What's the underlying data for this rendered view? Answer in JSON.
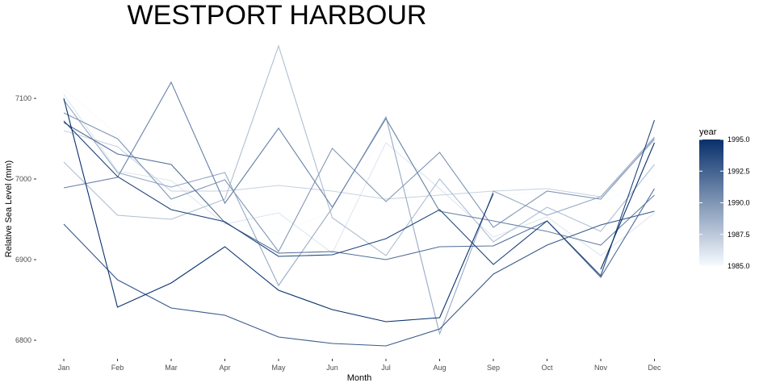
{
  "chart_data": {
    "type": "line",
    "title": "WESTPORT HARBOUR",
    "xlabel": "Month",
    "ylabel": "Relative Sea Level (mm)",
    "categories": [
      "Jan",
      "Feb",
      "Mar",
      "Apr",
      "May",
      "Jun",
      "Jul",
      "Aug",
      "Sep",
      "Oct",
      "Nov",
      "Dec"
    ],
    "ylim": [
      6770,
      7185
    ],
    "yticks": [
      6800,
      6900,
      7000,
      7100
    ],
    "grid": false,
    "legend": {
      "title": "year",
      "position": "right",
      "range": [
        1985,
        1995
      ],
      "ticks": [
        "1985.0",
        "1987.5",
        "1990.0",
        "1992.5",
        "1995.0"
      ],
      "color_low": "#f7fbff",
      "color_high": "#08306b"
    },
    "series": [
      {
        "year": 1985,
        "values": [
          7112,
          7055,
          6968,
          6948,
          6932,
          6960,
          7058,
          6985,
          6978,
          6985,
          6970,
          7003
        ]
      },
      {
        "year": 1986,
        "values": [
          7105,
          7010,
          6998,
          6944,
          6958,
          6908,
          7045,
          6988,
          6928,
          6953,
          6905,
          6958
        ]
      },
      {
        "year": 1987,
        "values": [
          7060,
          7040,
          6985,
          6985,
          6992,
          6985,
          6975,
          6980,
          6985,
          6988,
          6978,
          7048
        ]
      },
      {
        "year": 1988,
        "values": [
          7021,
          6955,
          6950,
          6975,
          7165,
          6952,
          6905,
          7000,
          6922,
          6965,
          6935,
          7018
        ]
      },
      {
        "year": 1989,
        "values": [
          7098,
          7008,
          6990,
          7008,
          6868,
          6964,
          7077,
          6808,
          6985,
          6955,
          6978,
          7052
        ]
      },
      {
        "year": 1990,
        "values": [
          7082,
          7050,
          6975,
          6999,
          6910,
          7038,
          6972,
          7033,
          6940,
          6985,
          6975,
          7050
        ]
      },
      {
        "year": 1991,
        "values": [
          6989,
          7002,
          7120,
          6970,
          7063,
          6965,
          7075,
          6960,
          6948,
          6935,
          6918,
          6980
        ]
      },
      {
        "year": 1992,
        "values": [
          7070,
          7031,
          7018,
          6946,
          6908,
          6910,
          6900,
          6916,
          6917,
          6948,
          6878,
          6988
        ]
      },
      {
        "year": 1993,
        "values": [
          6944,
          6875,
          6840,
          6831,
          6804,
          6796,
          6793,
          6814,
          6882,
          6918,
          6943,
          6960
        ]
      },
      {
        "year": 1994,
        "values": [
          7072,
          7003,
          6962,
          6947,
          6904,
          6906,
          6926,
          6962,
          6894,
          6948,
          6880,
          7073
        ]
      },
      {
        "year": 1995,
        "values": [
          7100,
          6841,
          6871,
          6916,
          6862,
          6838,
          6823,
          6828,
          6982,
          null,
          6888,
          7045
        ]
      }
    ]
  }
}
